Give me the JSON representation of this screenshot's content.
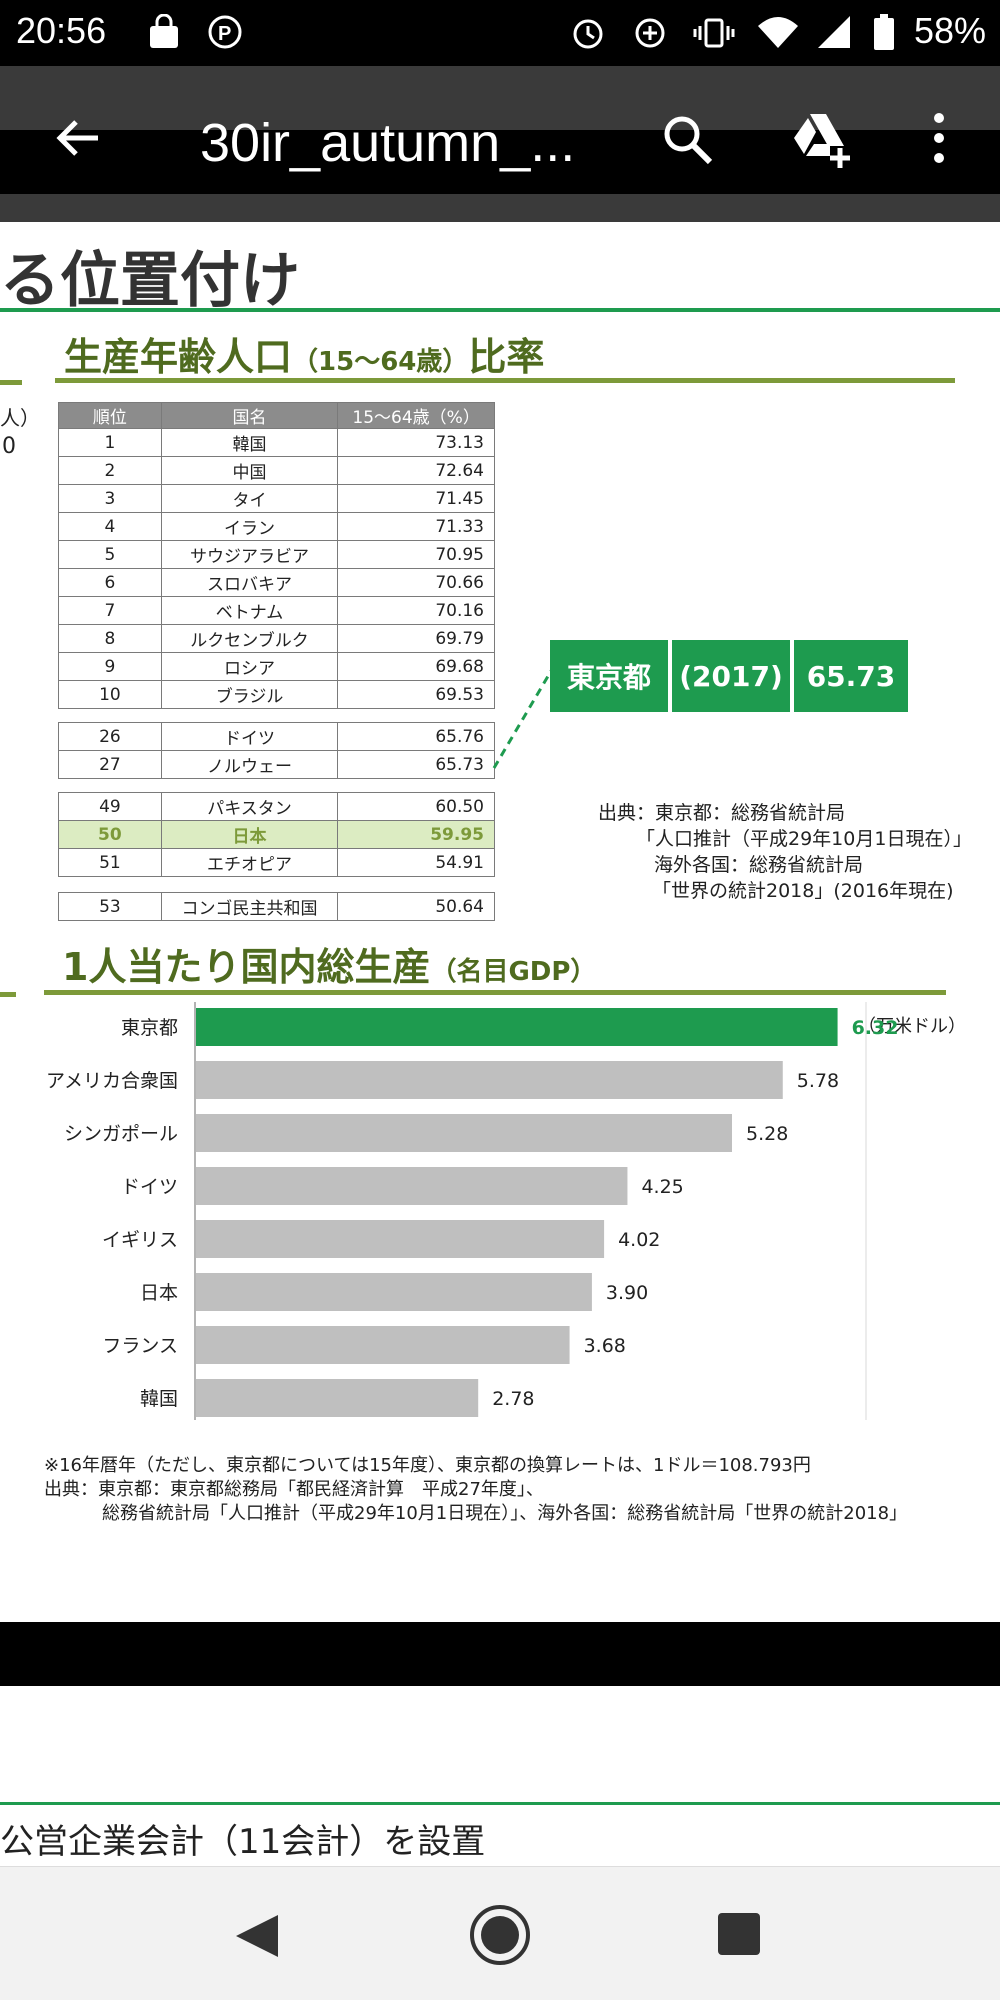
{
  "status_bar": {
    "time": "20:56",
    "battery": "58%",
    "icons": [
      "market-icon",
      "p-club-icon",
      "alarm-icon",
      "data-saver-icon",
      "vibrate-icon",
      "wifi-icon",
      "signal-icon",
      "battery-icon"
    ]
  },
  "app_bar": {
    "title": "30ir_autumn_...",
    "back_icon": "back-arrow-icon",
    "search_icon": "search-icon",
    "drive_icon": "add-to-drive-icon",
    "menu_icon": "more-vert-icon"
  },
  "page": {
    "headline": "る位置付け",
    "left_edge": [
      "人）",
      "0"
    ],
    "section1": {
      "title_main": "生産年齢人口",
      "title_sub": "（15～64歳）",
      "title_tail": "比率",
      "columns": [
        "順位",
        "国名",
        "15～64歳（%）"
      ],
      "group1": [
        [
          "1",
          "韓国",
          "73.13"
        ],
        [
          "2",
          "中国",
          "72.64"
        ],
        [
          "3",
          "タイ",
          "71.45"
        ],
        [
          "4",
          "イラン",
          "71.33"
        ],
        [
          "5",
          "サウジアラビア",
          "70.95"
        ],
        [
          "6",
          "スロバキア",
          "70.66"
        ],
        [
          "7",
          "ベトナム",
          "70.16"
        ],
        [
          "8",
          "ルクセンブルク",
          "69.79"
        ],
        [
          "9",
          "ロシア",
          "69.68"
        ],
        [
          "10",
          "ブラジル",
          "69.53"
        ]
      ],
      "group2": [
        [
          "26",
          "ドイツ",
          "65.76"
        ],
        [
          "27",
          "ノルウェー",
          "65.73"
        ]
      ],
      "group3": [
        [
          "49",
          "パキスタン",
          "60.50"
        ],
        [
          "50",
          "日本",
          "59.95"
        ],
        [
          "51",
          "エチオピア",
          "54.91"
        ]
      ],
      "group4": [
        [
          "53",
          "コンゴ民主共和国",
          "50.64"
        ]
      ],
      "tokyo": {
        "name": "東京都",
        "year": "(2017)",
        "value": "65.73"
      },
      "source": [
        "出典：東京都：総務省統計局",
        "「人口推計（平成29年10月1日現在）」",
        "海外各国：総務省統計局",
        "「世界の統計2018」(2016年現在)"
      ]
    },
    "section2": {
      "title_main": "1人当たり国内総生産",
      "title_sub": "（名目GDP）",
      "unit": "（万米ドル）",
      "note": [
        "※16年暦年（ただし、東京都については15年度）、東京都の換算レートは、1ドル＝108.793円",
        "出典：東京都：東京都総務局「都民経済計算　平成27年度」、",
        "総務省統計局「人口推計（平成29年10月1日現在）」、海外各国：総務省統計局「世界の統計2018」"
      ]
    },
    "next_section_title": "公営企業会計（11会計）を設置"
  },
  "colors": {
    "green": "#1e9b4f",
    "olive": "#7d9a3a",
    "bar_gray": "#bfbfbf",
    "highlight_row": "#dcecc2"
  },
  "chart_data": {
    "type": "bar",
    "orientation": "horizontal",
    "title": "1人当たり国内総生産（名目GDP）",
    "ylabel": "（万米ドル）",
    "categories": [
      "東京都",
      "アメリカ合衆国",
      "シンガポール",
      "ドイツ",
      "イギリス",
      "日本",
      "フランス",
      "韓国"
    ],
    "values": [
      6.32,
      5.78,
      5.28,
      4.25,
      4.02,
      3.9,
      3.68,
      2.78
    ],
    "labels": [
      "6.32",
      "5.78",
      "5.28",
      "4.25",
      "4.02",
      "3.90",
      "3.68",
      "2.78"
    ],
    "highlight": "東京都",
    "xlim": [
      0,
      6.6
    ]
  },
  "nav_bar": {
    "back": "nav-back-icon",
    "home": "nav-home-icon",
    "recents": "nav-recents-icon"
  }
}
